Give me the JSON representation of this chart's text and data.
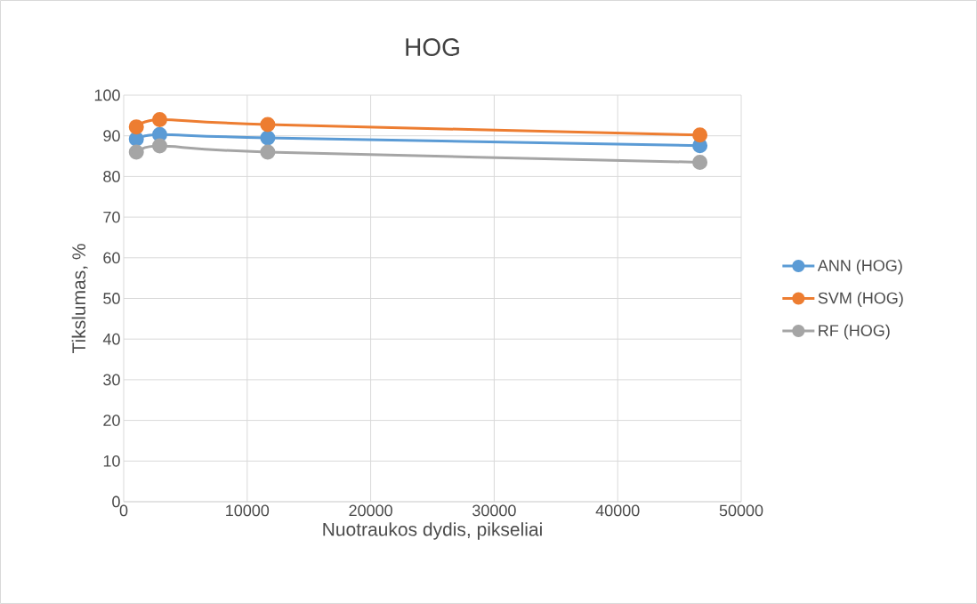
{
  "chart_data": {
    "type": "line",
    "title": "HOG",
    "xlabel": "Nuotraukos dydis, pikseliai",
    "ylabel": "Tikslumas, %",
    "x": [
      1024,
      2916,
      11664,
      46656
    ],
    "series": [
      {
        "name": "ANN (HOG)",
        "color": "#5b9bd5",
        "values": [
          89.2,
          90.3,
          89.5,
          87.6
        ]
      },
      {
        "name": "SVM (HOG)",
        "color": "#ed7d31",
        "values": [
          92.2,
          94.0,
          92.8,
          90.2
        ]
      },
      {
        "name": "RF (HOG)",
        "color": "#a5a5a5",
        "values": [
          86.0,
          87.5,
          86.0,
          83.5
        ]
      }
    ],
    "xlim": [
      0,
      50000
    ],
    "xticks": [
      0,
      10000,
      20000,
      30000,
      40000,
      50000
    ],
    "ylim": [
      0,
      100
    ],
    "yticks": [
      0,
      10,
      20,
      30,
      40,
      50,
      60,
      70,
      80,
      90,
      100
    ],
    "grid": true,
    "legend": "right",
    "marker": "circle",
    "line_style": "solid"
  }
}
